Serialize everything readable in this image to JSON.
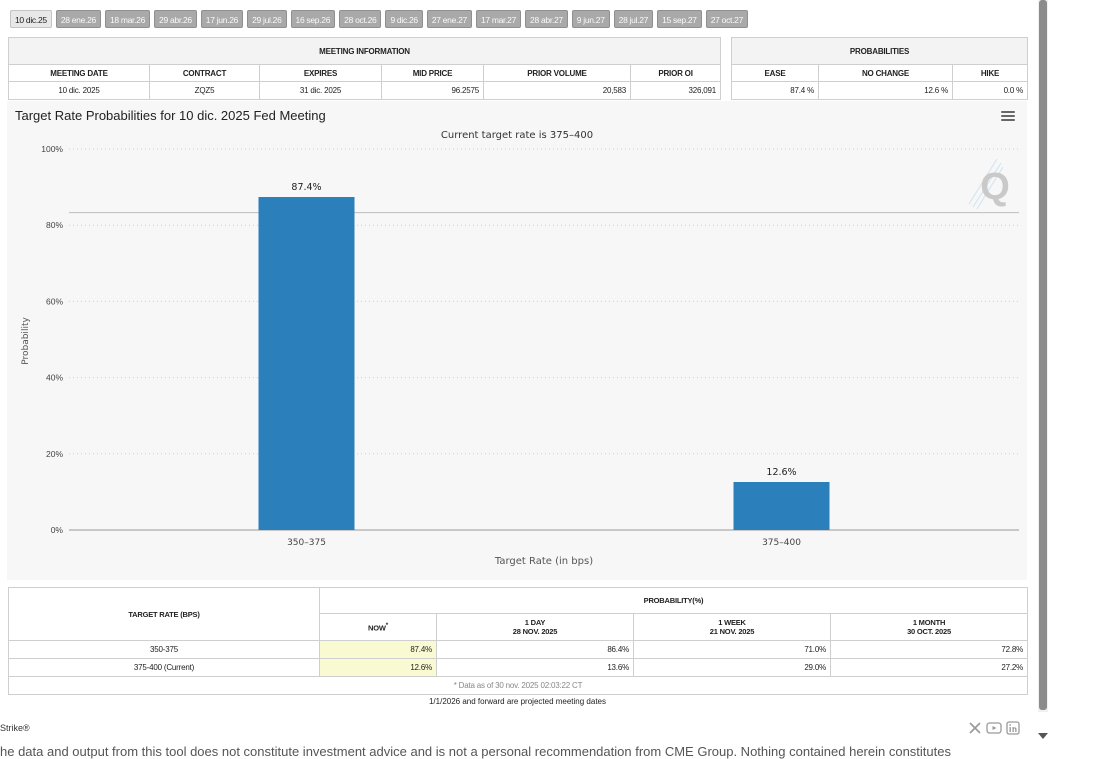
{
  "tabs": [
    "10 dic.25",
    "28 ene.26",
    "18 mar.26",
    "29 abr.26",
    "17 jun.26",
    "29 jul.26",
    "16 sep.26",
    "28 oct.26",
    "9 dic.26",
    "27 ene.27",
    "17 mar.27",
    "28 abr.27",
    "9 jun.27",
    "28 jul.27",
    "15 sep.27",
    "27 oct.27"
  ],
  "meeting": {
    "title": "MEETING INFORMATION",
    "headers": [
      "MEETING DATE",
      "CONTRACT",
      "EXPIRES",
      "MID PRICE",
      "PRIOR VOLUME",
      "PRIOR OI"
    ],
    "row": {
      "meeting_date": "10 dic. 2025",
      "contract": "ZQZ5",
      "expires": "31 dic. 2025",
      "mid_price": "96.2575",
      "prior_volume": "20,583",
      "prior_oi": "326,091"
    }
  },
  "probabilities": {
    "title": "PROBABILITIES",
    "headers": [
      "EASE",
      "NO CHANGE",
      "HIKE"
    ],
    "row": {
      "ease": "87.4 %",
      "no_change": "12.6 %",
      "hike": "0.0 %"
    }
  },
  "chart": {
    "title": "Target Rate Probabilities for 10 dic. 2025 Fed Meeting",
    "menu_icon": "hamburger-menu-icon",
    "watermark": "Q"
  },
  "chart_data": {
    "type": "bar",
    "title": "Target Rate Probabilities for 10 dic. 2025 Fed Meeting",
    "subtitle": "Current target rate is 375–400",
    "categories": [
      "350–375",
      "375–400"
    ],
    "values": [
      87.4,
      12.6
    ],
    "data_labels": [
      "87.4%",
      "12.6%"
    ],
    "xlabel": "Target Rate (in bps)",
    "ylabel": "Probability",
    "ylim": [
      0,
      100
    ],
    "yticks": [
      0,
      20,
      40,
      60,
      80,
      100
    ],
    "ytick_labels": [
      "0%",
      "20%",
      "40%",
      "60%",
      "80%",
      "100%"
    ],
    "grid": true,
    "reference_line": 83.3,
    "bar_color": "#2b7fbb"
  },
  "bottom_table": {
    "col_target": "TARGET RATE (BPS)",
    "col_group": "PROBABILITY(%)",
    "now": "NOW",
    "now_mark": "*",
    "periods": [
      {
        "label": "1 DAY",
        "date": "28 NOV. 2025"
      },
      {
        "label": "1 WEEK",
        "date": "21 NOV. 2025"
      },
      {
        "label": "1 MONTH",
        "date": "30 OCT. 2025"
      }
    ],
    "rows": [
      {
        "rate": "350-375",
        "now": "87.4%",
        "day": "86.4%",
        "week": "71.0%",
        "month": "72.8%"
      },
      {
        "rate": "375-400 (Current)",
        "now": "12.6%",
        "day": "13.6%",
        "week": "29.0%",
        "month": "27.2%"
      }
    ],
    "note": "* Data as of 30 nov. 2025 02:03:22 CT"
  },
  "projected_note": "1/1/2026 and forward are projected meeting dates",
  "footer": {
    "brand": "Strike®",
    "social_icons": [
      "x-icon",
      "youtube-icon",
      "linkedin-icon"
    ],
    "disclaimer": "he data and output from this tool does not constitute investment advice and is not a personal recommendation from CME Group. Nothing contained herein constitutes"
  }
}
